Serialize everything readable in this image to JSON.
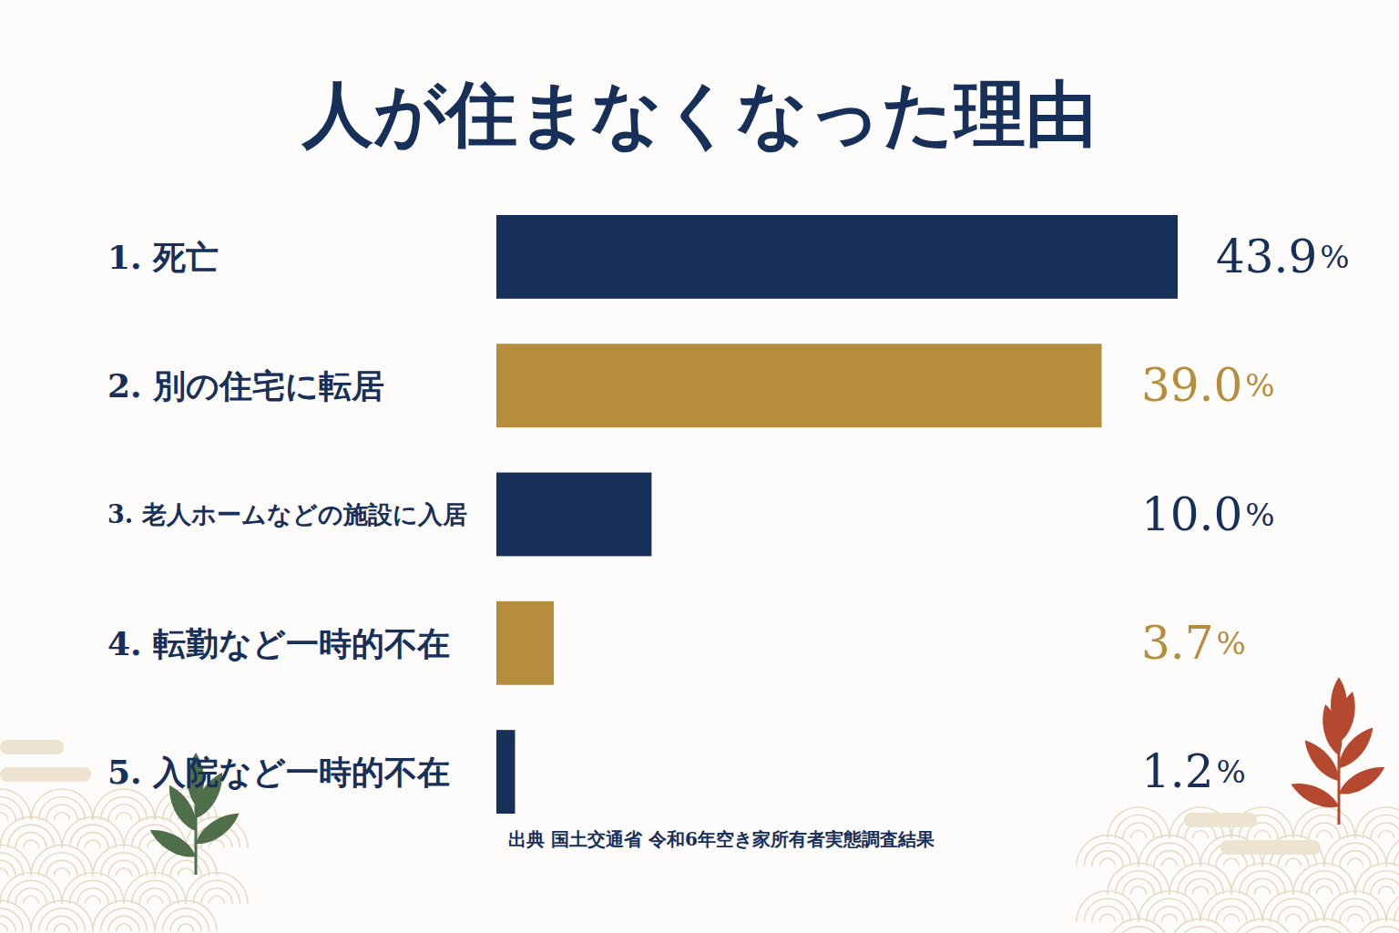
{
  "chart_data": {
    "type": "bar",
    "orientation": "horizontal",
    "title": "人が住まなくなった理由",
    "categories": [
      "1. 死亡",
      "2. 別の住宅に転居",
      "3. 老人ホームなどの施設に入居",
      "4. 転勤など一時的不在",
      "5. 入院など一時的不在"
    ],
    "values": [
      43.9,
      39.0,
      10.0,
      3.7,
      1.2
    ],
    "value_labels": [
      "43.9%",
      "39.0%",
      "10.0%",
      "3.7%",
      "1.2%"
    ],
    "colors": [
      "#17305a",
      "#b68d3c",
      "#17305a",
      "#b68d3c",
      "#17305a"
    ],
    "data_labels": true,
    "tick_labels": false,
    "grid": false,
    "source": "出典 国土交通省 令和6年空き家所有者実態調査結果"
  }
}
